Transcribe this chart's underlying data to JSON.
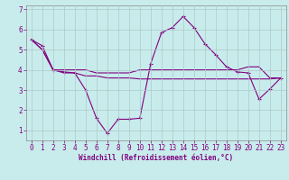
{
  "xlabel": "Windchill (Refroidissement éolien,°C)",
  "background_color": "#c8ecec",
  "line_color": "#800080",
  "xlim": [
    -0.5,
    23.5
  ],
  "ylim": [
    0.5,
    7.2
  ],
  "yticks": [
    1,
    2,
    3,
    4,
    5,
    6,
    7
  ],
  "xticks": [
    0,
    1,
    2,
    3,
    4,
    5,
    6,
    7,
    8,
    9,
    10,
    11,
    12,
    13,
    14,
    15,
    16,
    17,
    18,
    19,
    20,
    21,
    22,
    23
  ],
  "line1_x": [
    0,
    1,
    2,
    3,
    4,
    5,
    6,
    7,
    8,
    9,
    10,
    11,
    12,
    13,
    14,
    15,
    16,
    17,
    18,
    19,
    20,
    21,
    22,
    23
  ],
  "line1_y": [
    5.5,
    5.2,
    4.0,
    3.9,
    3.85,
    3.0,
    1.6,
    0.85,
    1.55,
    1.55,
    1.6,
    4.3,
    5.85,
    6.1,
    6.65,
    6.1,
    5.3,
    4.75,
    4.15,
    3.9,
    3.85,
    2.55,
    3.05,
    3.6
  ],
  "line2_x": [
    0,
    1,
    2,
    3,
    4,
    5,
    6,
    7,
    8,
    9,
    10,
    11,
    12,
    13,
    14,
    15,
    16,
    17,
    18,
    19,
    20,
    21,
    22,
    23
  ],
  "line2_y": [
    5.5,
    5.0,
    4.0,
    4.0,
    4.0,
    4.0,
    3.85,
    3.85,
    3.85,
    3.85,
    4.0,
    4.0,
    4.0,
    4.0,
    4.0,
    4.0,
    4.0,
    4.0,
    4.0,
    4.0,
    4.15,
    4.15,
    3.6,
    3.6
  ],
  "line3_x": [
    0,
    1,
    2,
    3,
    4,
    5,
    6,
    7,
    8,
    9,
    10,
    11,
    12,
    13,
    14,
    15,
    16,
    17,
    18,
    19,
    20,
    21,
    22,
    23
  ],
  "line3_y": [
    5.5,
    5.0,
    4.0,
    3.85,
    3.85,
    3.7,
    3.7,
    3.6,
    3.6,
    3.6,
    3.55,
    3.55,
    3.55,
    3.55,
    3.55,
    3.55,
    3.55,
    3.55,
    3.55,
    3.55,
    3.55,
    3.55,
    3.55,
    3.6
  ],
  "grid_color": "#b0c8c8",
  "marker": "+",
  "marker_size": 3,
  "linewidth": 0.8,
  "xlabel_fontsize": 5.5,
  "tick_fontsize": 5.5
}
